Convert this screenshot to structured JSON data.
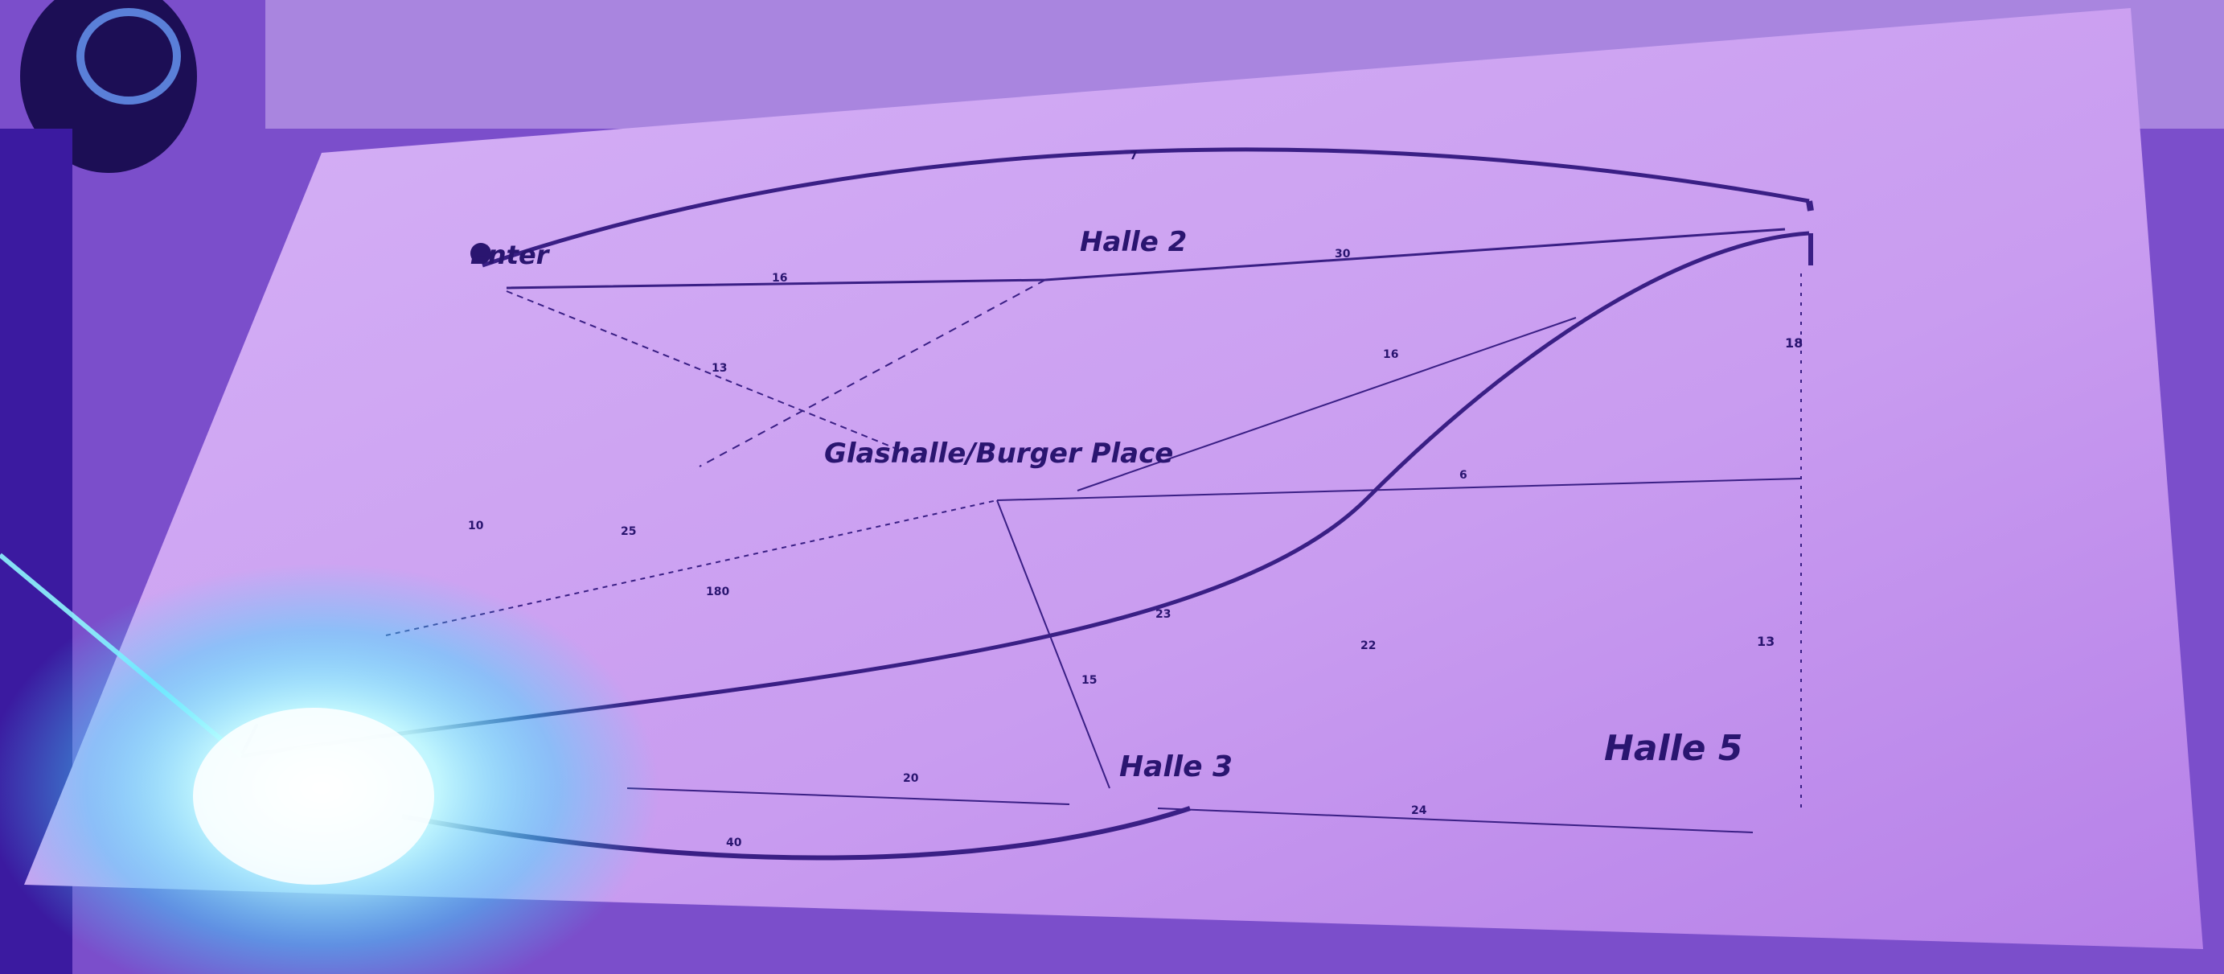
{
  "nodes": {
    "enter": "Enter",
    "halle2": "Halle 2",
    "glashalle": "Glashalle/Burger Place",
    "halle3": "Halle 3",
    "halle5": "Halle 5"
  },
  "edge_weights": {
    "top_arc": "7",
    "enter_halle2": "16",
    "halle2_right": "30",
    "enter_down": "13",
    "right_mid": "16",
    "right_top": "18",
    "left_a": "10",
    "left_b": "25",
    "glashalle_right": "6",
    "left_c": "180",
    "center_a": "23",
    "center_b": "22",
    "center_c": "15",
    "right_bottom": "13",
    "halle3_left": "20",
    "bottom_arc": "40",
    "halle3_right": "24"
  },
  "colors": {
    "paper": "#c79cf0",
    "ink": "#2a1570",
    "light_glow": "#7ff4ff"
  }
}
